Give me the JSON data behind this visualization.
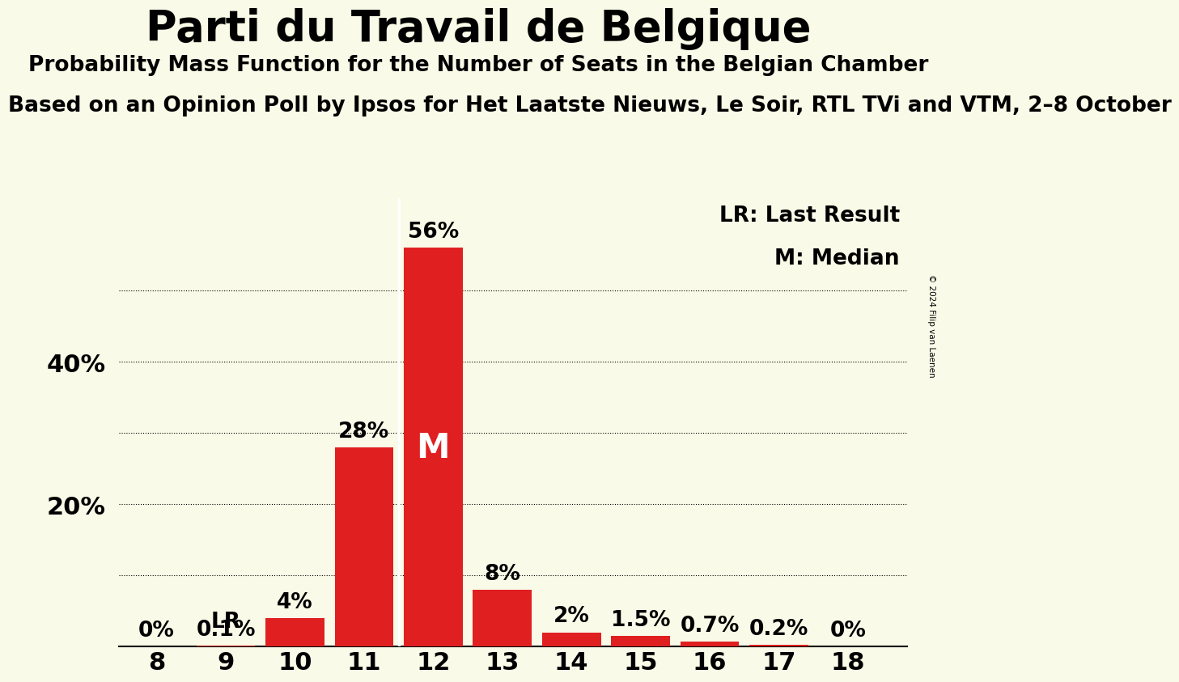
{
  "title": "Parti du Travail de Belgique",
  "subtitle1": "Probability Mass Function for the Number of Seats in the Belgian Chamber",
  "subtitle2": "Based on an Opinion Poll by Ipsos for Het Laatste Nieuws, Le Soir, RTL TVi and VTM, 2–8 October",
  "copyright": "© 2024 Filip van Laenen",
  "seats": [
    8,
    9,
    10,
    11,
    12,
    13,
    14,
    15,
    16,
    17,
    18
  ],
  "probabilities": [
    0.0,
    0.1,
    4.0,
    28.0,
    56.0,
    8.0,
    2.0,
    1.5,
    0.7,
    0.2,
    0.0
  ],
  "labels": [
    "0%",
    "0.1%",
    "4%",
    "28%",
    "56%",
    "8%",
    "2%",
    "1.5%",
    "0.7%",
    "0.2%",
    "0%"
  ],
  "bar_color": "#e02020",
  "background_color": "#fafae8",
  "median_seat": 12,
  "lr_seat": 9,
  "ylim": [
    0,
    63
  ],
  "grid_yticks": [
    10,
    20,
    30,
    40,
    50
  ],
  "ytick_positions": [
    20,
    40
  ],
  "ytick_labels": [
    "20%",
    "40%"
  ],
  "legend_lr": "LR: Last Result",
  "legend_m": "M: Median",
  "title_fontsize": 38,
  "subtitle1_fontsize": 19,
  "subtitle2_fontsize": 19,
  "bar_label_fontsize": 19,
  "tick_fontsize": 22,
  "legend_fontsize": 19
}
